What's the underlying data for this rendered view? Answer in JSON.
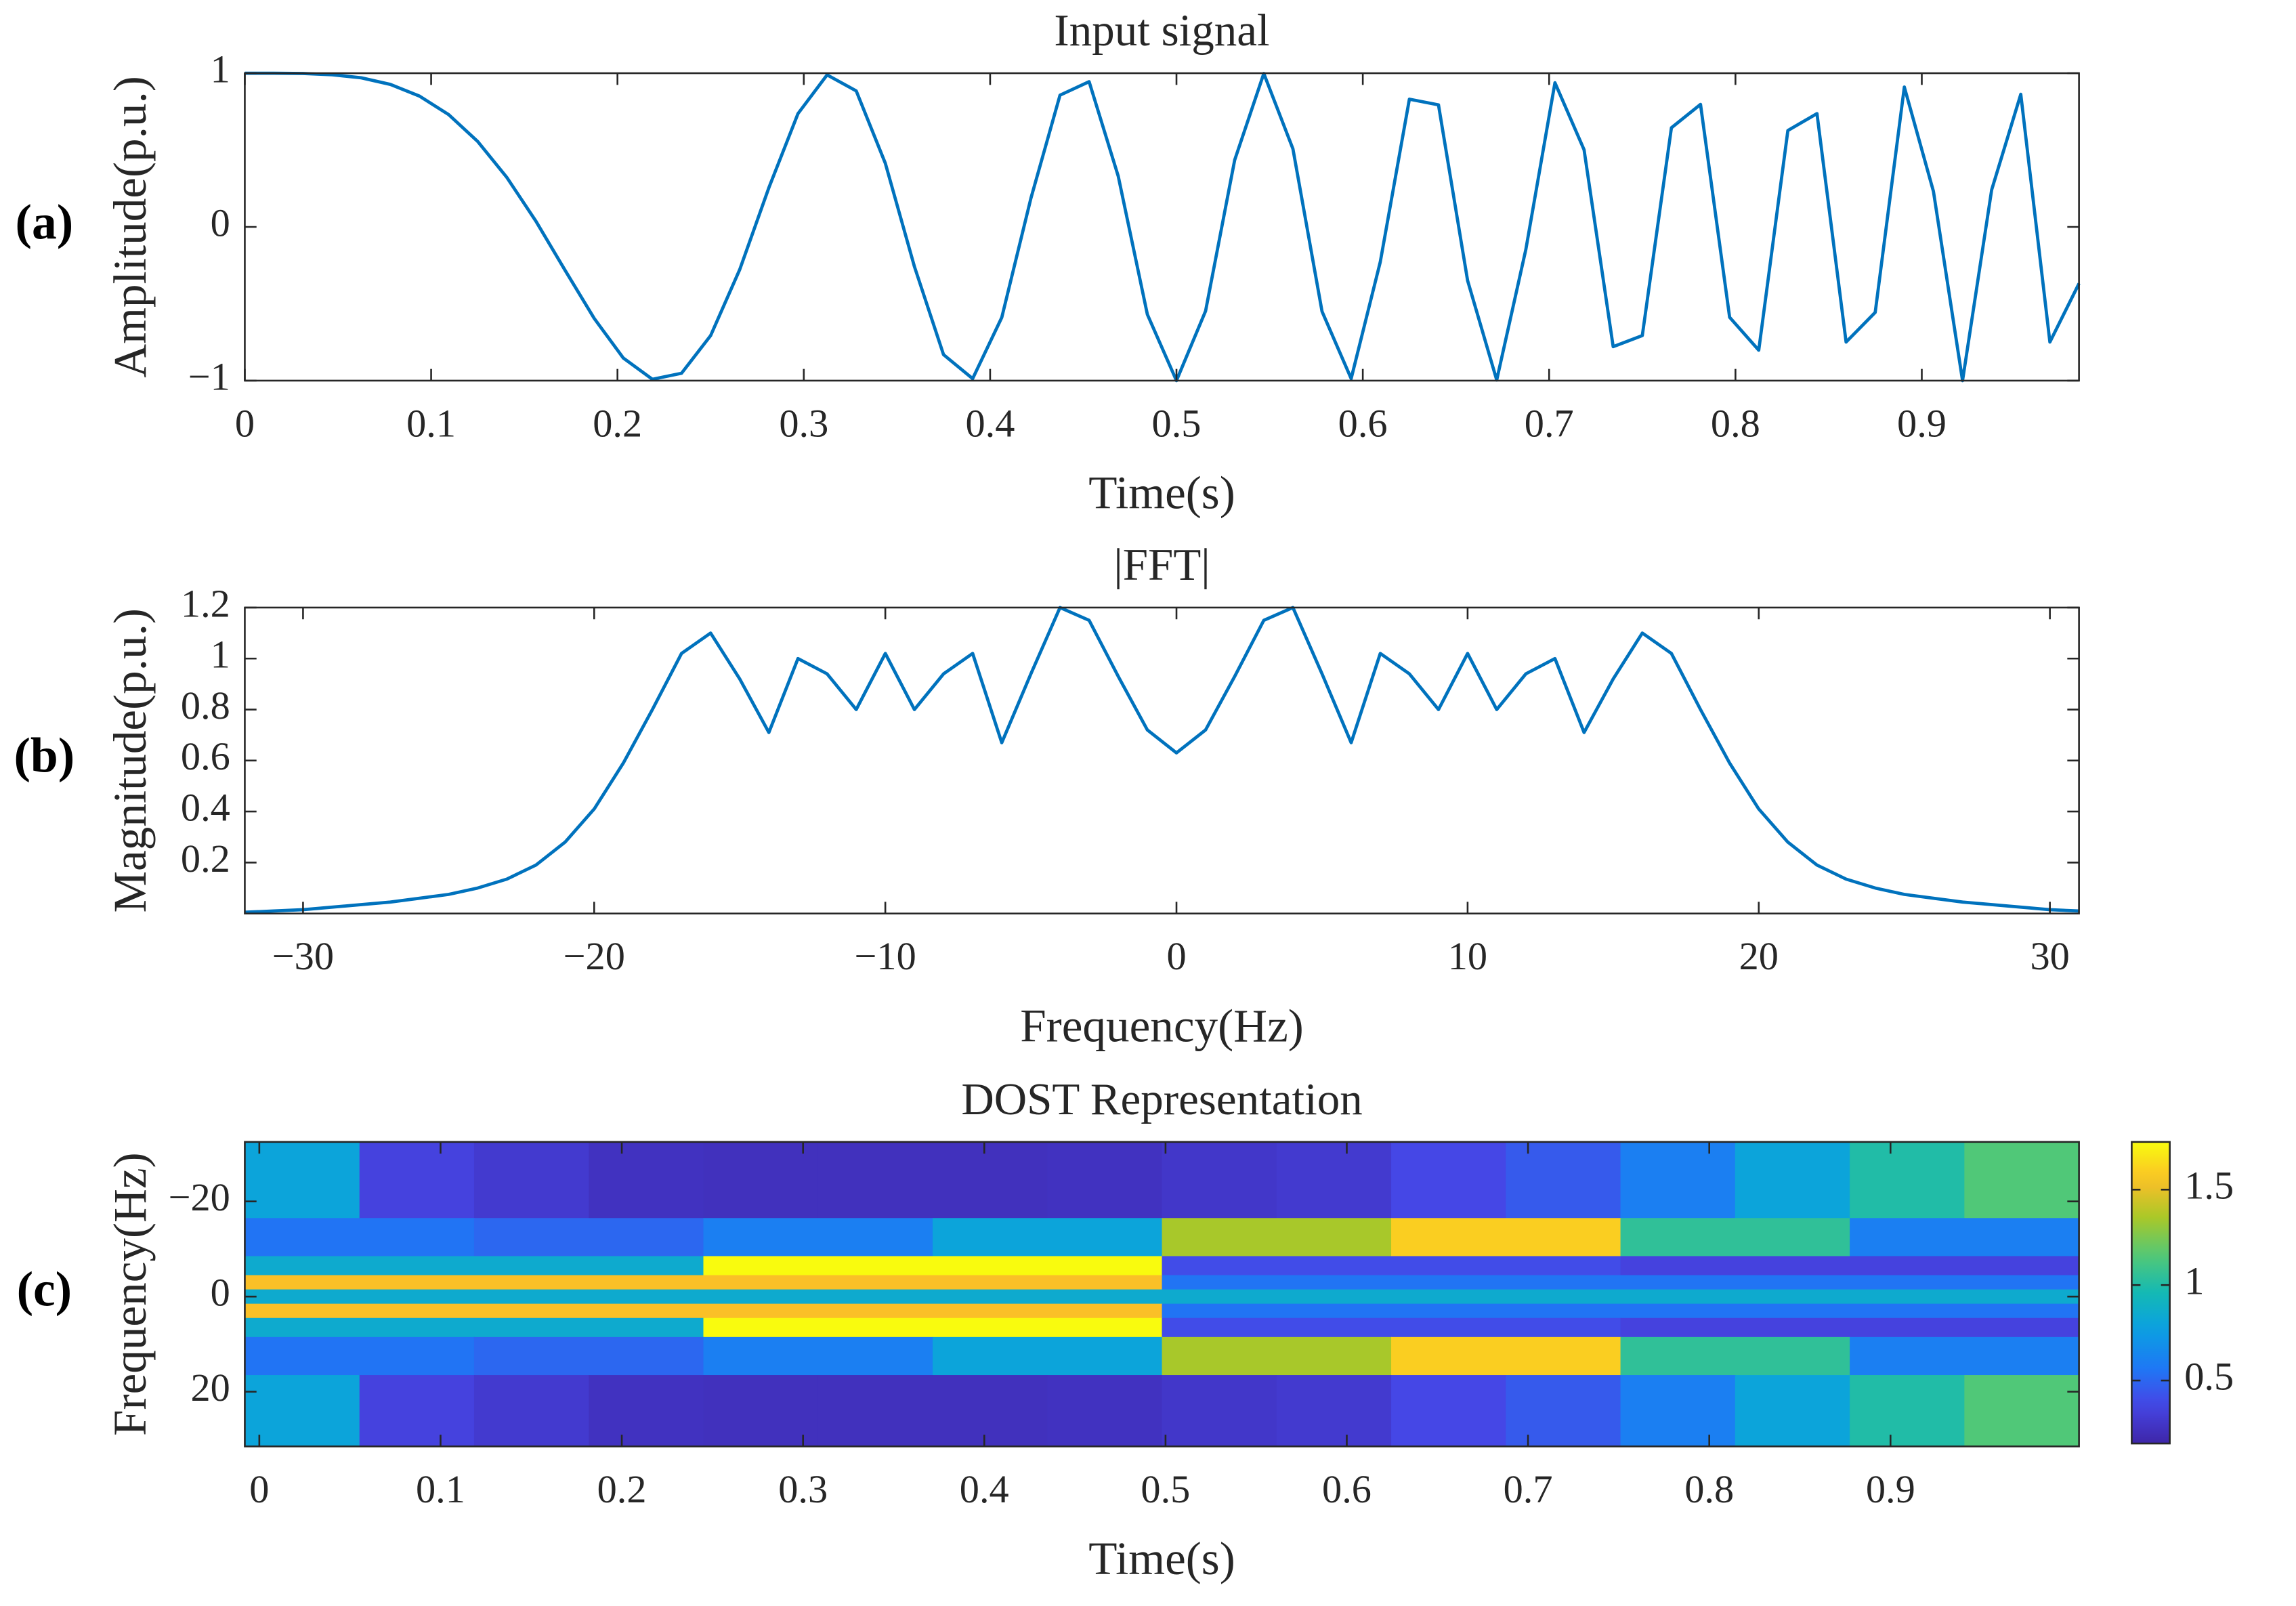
{
  "chart_data": [
    {
      "type": "line",
      "panel_label": "(a)",
      "title": "Input signal",
      "x_label": "Time(s)",
      "y_label": "Amplitude(p.u.)",
      "color": "#0072bd",
      "x": [
        0,
        0.015625,
        0.03125,
        0.046875,
        0.0625,
        0.078125,
        0.09375,
        0.109375,
        0.125,
        0.140625,
        0.15625,
        0.171875,
        0.1875,
        0.203125,
        0.21875,
        0.234375,
        0.25,
        0.265625,
        0.28125,
        0.296875,
        0.3125,
        0.328125,
        0.34375,
        0.359375,
        0.375,
        0.390625,
        0.40625,
        0.421875,
        0.4375,
        0.453125,
        0.46875,
        0.484375,
        0.5,
        0.515625,
        0.53125,
        0.546875,
        0.5625,
        0.578125,
        0.59375,
        0.609375,
        0.625,
        0.640625,
        0.65625,
        0.671875,
        0.6875,
        0.703125,
        0.71875,
        0.734375,
        0.75,
        0.765625,
        0.78125,
        0.796875,
        0.8125,
        0.828125,
        0.84375,
        0.859375,
        0.875,
        0.890625,
        0.90625,
        0.921875,
        0.9375,
        0.953125,
        0.96875,
        0.984375
      ],
      "values": [
        1,
        1,
        0.998,
        0.99,
        0.97,
        0.927,
        0.851,
        0.731,
        0.556,
        0.322,
        0.037,
        -0.282,
        -0.595,
        -0.853,
        -0.991,
        -0.952,
        -0.707,
        -0.277,
        0.255,
        0.737,
        0.989,
        0.885,
        0.414,
        -0.258,
        -0.831,
        -0.987,
        -0.589,
        0.186,
        0.857,
        0.945,
        0.33,
        -0.569,
        -1,
        -0.547,
        0.435,
        0.998,
        0.508,
        -0.55,
        -0.987,
        -0.228,
        0.831,
        0.794,
        -0.349,
        -0.996,
        -0.147,
        0.938,
        0.502,
        -0.779,
        -0.707,
        0.645,
        0.797,
        -0.588,
        -0.802,
        0.627,
        0.737,
        -0.749,
        -0.556,
        0.91,
        0.231,
        -1,
        0.241,
        0.863,
        -0.749,
        -0.368
      ],
      "xlim": [
        0,
        0.984375
      ],
      "ylim": [
        -1,
        1
      ],
      "xticks": [
        0,
        0.1,
        0.2,
        0.3,
        0.4,
        0.5,
        0.6,
        0.7,
        0.8,
        0.9
      ],
      "yticks": [
        {
          "value": -1,
          "label": "−1"
        },
        0,
        1
      ]
    },
    {
      "type": "line",
      "panel_label": "(b)",
      "title": "|FFT|",
      "x_label": "Frequency(Hz)",
      "y_label": "Magnitude(p.u.)",
      "color": "#0072bd",
      "x": [
        -32,
        -31,
        -30,
        -29,
        -28,
        -27,
        -26,
        -25,
        -24,
        -23,
        -22,
        -21,
        -20,
        -19,
        -18,
        -17,
        -16,
        -15,
        -14,
        -13,
        -12,
        -11,
        -10,
        -9,
        -8,
        -7,
        -6,
        -5,
        -4,
        -3,
        -2,
        -1,
        0,
        1,
        2,
        3,
        4,
        5,
        6,
        7,
        8,
        9,
        10,
        11,
        12,
        13,
        14,
        15,
        16,
        17,
        18,
        19,
        20,
        21,
        22,
        23,
        24,
        25,
        26,
        27,
        28,
        29,
        30,
        31
      ],
      "values": [
        0.005,
        0.01,
        0.015,
        0.025,
        0.035,
        0.045,
        0.06,
        0.075,
        0.1,
        0.135,
        0.19,
        0.28,
        0.41,
        0.59,
        0.8,
        1.02,
        1.1,
        0.92,
        0.71,
        1.0,
        0.94,
        0.8,
        1.02,
        0.8,
        0.94,
        1.02,
        0.67,
        0.94,
        1.2,
        1.15,
        0.93,
        0.72,
        0.63,
        0.72,
        0.93,
        1.15,
        1.2,
        0.94,
        0.67,
        1.02,
        0.94,
        0.8,
        1.02,
        0.8,
        0.94,
        1.0,
        0.71,
        0.92,
        1.1,
        1.02,
        0.8,
        0.59,
        0.41,
        0.28,
        0.19,
        0.135,
        0.1,
        0.075,
        0.06,
        0.045,
        0.035,
        0.025,
        0.015,
        0.01
      ],
      "xlim": [
        -32,
        31
      ],
      "ylim": [
        0,
        1.2
      ],
      "xticks": [
        {
          "value": -30,
          "label": "−30"
        },
        {
          "value": -20,
          "label": "−20"
        },
        {
          "value": -10,
          "label": "−10"
        },
        0,
        10,
        20,
        30
      ],
      "yticks": [
        0.2,
        0.4,
        0.6,
        0.8,
        1,
        1.2
      ]
    },
    {
      "type": "heatmap",
      "panel_label": "(c)",
      "title": "DOST Representation",
      "x_label": "Time(s)",
      "y_label": "Frequency(Hz)",
      "colormap": "parula",
      "xlim": [
        -0.008,
        1.004
      ],
      "ylim": [
        -32.5,
        31.5
      ],
      "ydir": "reverse",
      "clim": [
        0.17,
        1.75
      ],
      "xticks": [
        0,
        0.1,
        0.2,
        0.3,
        0.4,
        0.5,
        0.6,
        0.7,
        0.8,
        0.9
      ],
      "yticks": [
        {
          "value": -20,
          "label": "−20"
        },
        0,
        20
      ],
      "cticks": [
        0.5,
        1,
        1.5
      ],
      "bands": [
        {
          "f": [
            -32.5,
            -16.5
          ],
          "values": [
            0.8,
            0.35,
            0.3,
            0.25,
            0.24,
            0.24,
            0.24,
            0.25,
            0.28,
            0.3,
            0.38,
            0.45,
            0.6,
            0.8,
            1.0,
            1.15
          ]
        },
        {
          "f": [
            -16.5,
            -8.5
          ],
          "values": [
            0.55,
            0.5,
            0.6,
            0.8,
            1.35,
            1.6,
            1.05,
            0.6
          ]
        },
        {
          "f": [
            -8.5,
            -4.5
          ],
          "values": [
            0.85,
            1.75,
            0.4,
            0.35
          ]
        },
        {
          "f": [
            -4.5,
            -1.5
          ],
          "values": [
            1.55,
            0.55
          ]
        },
        {
          "f": [
            -1.5,
            1.5
          ],
          "values": [
            0.85
          ]
        },
        {
          "f": [
            1.5,
            4.5
          ],
          "values": [
            1.55,
            0.55
          ]
        },
        {
          "f": [
            4.5,
            8.5
          ],
          "values": [
            0.85,
            1.75,
            0.4,
            0.35
          ]
        },
        {
          "f": [
            8.5,
            16.5
          ],
          "values": [
            0.55,
            0.5,
            0.6,
            0.8,
            1.35,
            1.6,
            1.05,
            0.6
          ]
        },
        {
          "f": [
            16.5,
            31.5
          ],
          "values": [
            0.8,
            0.35,
            0.3,
            0.25,
            0.24,
            0.24,
            0.24,
            0.25,
            0.28,
            0.3,
            0.38,
            0.45,
            0.6,
            0.8,
            1.0,
            1.15
          ]
        }
      ]
    }
  ]
}
